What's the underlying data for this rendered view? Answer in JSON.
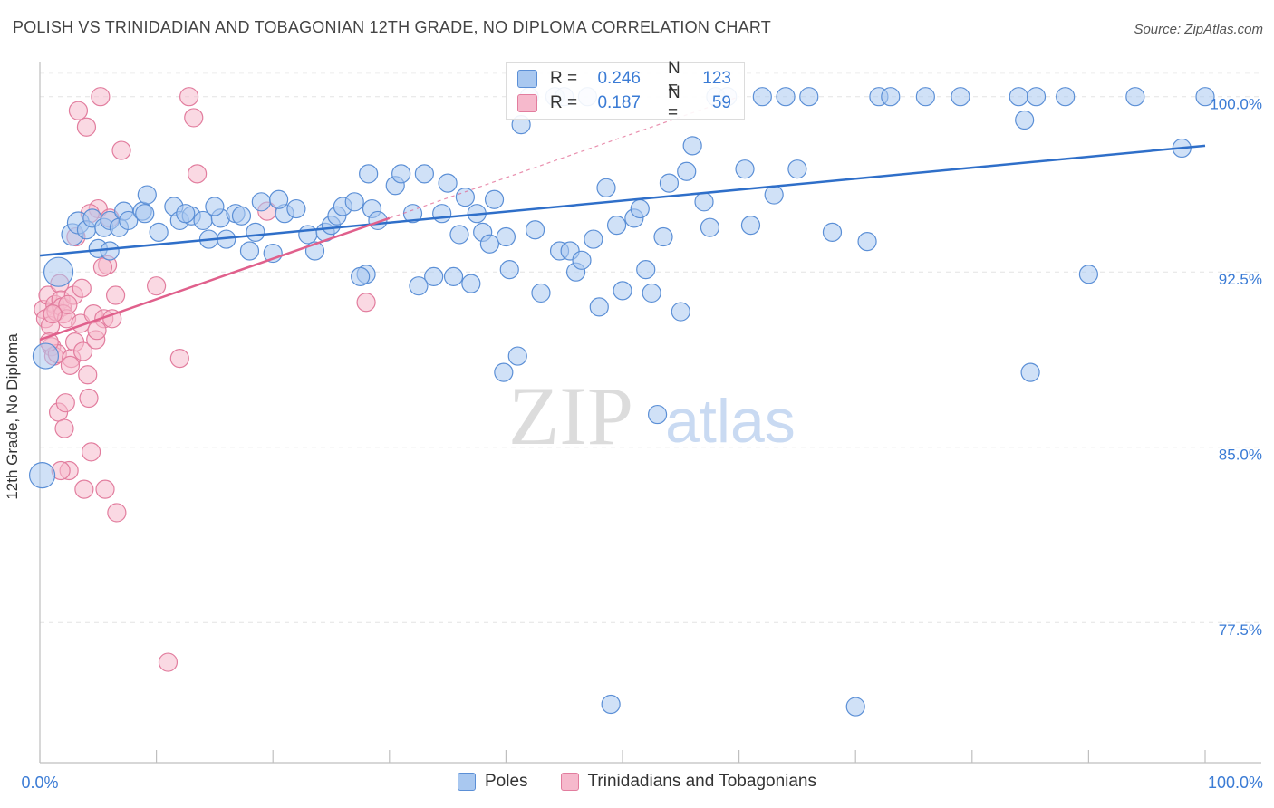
{
  "header": {
    "title": "POLISH VS TRINIDADIAN AND TOBAGONIAN 12TH GRADE, NO DIPLOMA CORRELATION CHART",
    "source": "Source: ZipAtlas.com"
  },
  "watermark": {
    "zip": "ZIP",
    "atlas": "atlas"
  },
  "colors": {
    "poles_fill": "#a9c8f0",
    "poles_stroke": "#5b8fd6",
    "poles_line": "#2f6fc9",
    "trin_fill": "#f6b9cc",
    "trin_stroke": "#e27d9e",
    "trin_line": "#e0608c",
    "axis_text": "#3a7bd5"
  },
  "legend_stats": [
    {
      "r_label": "R =",
      "r_value": "0.246",
      "n_label": "N =",
      "n_value": "123"
    },
    {
      "r_label": "R =",
      "r_value": "0.187",
      "n_label": "N =",
      "n_value": "59"
    }
  ],
  "legend_bottom": [
    "Poles",
    "Trinidadians and Tobagonians"
  ],
  "chart_data": {
    "type": "scatter",
    "title": "POLISH VS TRINIDADIAN AND TOBAGONIAN 12TH GRADE, NO DIPLOMA CORRELATION CHART",
    "xlabel": "",
    "ylabel": "12th Grade, No Diploma",
    "xlim": [
      0,
      100
    ],
    "ylim": [
      71.5,
      101.5
    ],
    "x_ticks": [
      "0.0%",
      "100.0%"
    ],
    "y_ticks": [
      {
        "value": 77.5,
        "label": "77.5%"
      },
      {
        "value": 85.0,
        "label": "85.0%"
      },
      {
        "value": 92.5,
        "label": "92.5%"
      },
      {
        "value": 100.0,
        "label": "100.0%"
      }
    ],
    "grid": true,
    "legend_position": "top-center",
    "series": [
      {
        "name": "Poles",
        "trend": {
          "x": [
            0,
            100
          ],
          "y": [
            93.2,
            97.9
          ]
        },
        "points": [
          [
            0.2,
            83.8,
            14
          ],
          [
            0.5,
            88.9,
            14
          ],
          [
            1.6,
            92.5,
            16
          ],
          [
            2.8,
            94.1,
            12
          ],
          [
            3.3,
            94.6,
            12
          ],
          [
            4.0,
            94.3,
            10
          ],
          [
            4.5,
            94.8,
            10
          ],
          [
            5.0,
            93.5,
            10
          ],
          [
            5.5,
            94.4,
            10
          ],
          [
            6.0,
            94.7,
            10
          ],
          [
            6.8,
            94.4,
            10
          ],
          [
            7.2,
            95.1,
            10
          ],
          [
            7.6,
            94.7,
            10
          ],
          [
            8.8,
            95.1,
            10
          ],
          [
            9.2,
            95.8,
            10
          ],
          [
            10.2,
            94.2,
            10
          ],
          [
            11.5,
            95.3,
            10
          ],
          [
            12.0,
            94.7,
            10
          ],
          [
            13.0,
            94.9,
            10
          ],
          [
            14.0,
            94.7,
            10
          ],
          [
            14.5,
            93.9,
            10
          ],
          [
            15.5,
            94.8,
            10
          ],
          [
            15.0,
            95.3,
            10
          ],
          [
            16.0,
            93.9,
            10
          ],
          [
            16.8,
            95.0,
            10
          ],
          [
            17.3,
            94.9,
            10
          ],
          [
            18.5,
            94.2,
            10
          ],
          [
            18.0,
            93.4,
            10
          ],
          [
            19.0,
            95.5,
            10
          ],
          [
            20.0,
            93.3,
            10
          ],
          [
            21.0,
            95.0,
            10
          ],
          [
            22.0,
            95.2,
            10
          ],
          [
            23.0,
            94.1,
            10
          ],
          [
            23.6,
            93.4,
            10
          ],
          [
            24.5,
            94.2,
            10
          ],
          [
            25.0,
            94.5,
            10
          ],
          [
            25.5,
            94.9,
            10
          ],
          [
            26.0,
            95.3,
            10
          ],
          [
            27.0,
            95.5,
            10
          ],
          [
            28.0,
            92.4,
            10
          ],
          [
            28.5,
            95.2,
            10
          ],
          [
            29.0,
            94.7,
            10
          ],
          [
            28.2,
            96.7,
            10
          ],
          [
            30.5,
            96.2,
            10
          ],
          [
            31.0,
            96.7,
            10
          ],
          [
            32.0,
            95.0,
            10
          ],
          [
            33.0,
            96.7,
            10
          ],
          [
            33.8,
            92.3,
            10
          ],
          [
            34.5,
            95.0,
            10
          ],
          [
            35.0,
            96.3,
            10
          ],
          [
            36.0,
            94.1,
            10
          ],
          [
            36.5,
            95.7,
            10
          ],
          [
            37.0,
            92.0,
            10
          ],
          [
            38.0,
            94.2,
            10
          ],
          [
            38.6,
            93.7,
            10
          ],
          [
            39.0,
            95.6,
            10
          ],
          [
            39.8,
            88.2,
            10
          ],
          [
            40.3,
            92.6,
            10
          ],
          [
            41.0,
            88.9,
            10
          ],
          [
            41.3,
            98.8,
            10
          ],
          [
            42.0,
            100.0,
            10
          ],
          [
            43.0,
            91.6,
            10
          ],
          [
            44.2,
            100.0,
            10
          ],
          [
            44.6,
            93.4,
            10
          ],
          [
            45.0,
            100.0,
            10
          ],
          [
            45.5,
            93.4,
            10
          ],
          [
            46.0,
            92.5,
            10
          ],
          [
            47.0,
            100.0,
            10
          ],
          [
            47.5,
            93.9,
            10
          ],
          [
            48.0,
            91.0,
            10
          ],
          [
            48.6,
            96.1,
            10
          ],
          [
            49.0,
            74.0,
            10
          ],
          [
            50.0,
            91.7,
            10
          ],
          [
            51.0,
            94.8,
            10
          ],
          [
            51.5,
            95.2,
            10
          ],
          [
            52.0,
            92.6,
            10
          ],
          [
            52.5,
            91.6,
            10
          ],
          [
            53.0,
            86.4,
            10
          ],
          [
            54.0,
            96.3,
            10
          ],
          [
            55.0,
            90.8,
            10
          ],
          [
            56.0,
            97.9,
            10
          ],
          [
            57.0,
            95.5,
            10
          ],
          [
            58.0,
            100.0,
            10
          ],
          [
            59.0,
            100.0,
            10
          ],
          [
            60.5,
            96.9,
            10
          ],
          [
            62.0,
            100.0,
            10
          ],
          [
            64.0,
            100.0,
            10
          ],
          [
            66.0,
            100.0,
            10
          ],
          [
            68.0,
            94.2,
            10
          ],
          [
            70.0,
            73.9,
            10
          ],
          [
            71.0,
            93.8,
            10
          ],
          [
            72.0,
            100.0,
            10
          ],
          [
            73.0,
            100.0,
            10
          ],
          [
            76.0,
            100.0,
            10
          ],
          [
            79.0,
            100.0,
            10
          ],
          [
            84.0,
            100.0,
            10
          ],
          [
            84.5,
            99.0,
            10
          ],
          [
            85.0,
            88.2,
            10
          ],
          [
            85.5,
            100.0,
            10
          ],
          [
            88.0,
            100.0,
            10
          ],
          [
            90.0,
            92.4,
            10
          ],
          [
            94.0,
            100.0,
            10
          ],
          [
            98.0,
            97.8,
            10
          ],
          [
            100.0,
            100.0,
            10
          ],
          [
            6.0,
            93.4,
            10
          ],
          [
            9.0,
            95.0,
            10
          ],
          [
            12.5,
            95.0,
            10
          ],
          [
            20.5,
            95.6,
            10
          ],
          [
            27.5,
            92.3,
            10
          ],
          [
            32.5,
            91.9,
            10
          ],
          [
            35.5,
            92.3,
            10
          ],
          [
            37.5,
            95.0,
            10
          ],
          [
            40.0,
            94.0,
            10
          ],
          [
            42.5,
            94.3,
            10
          ],
          [
            46.5,
            93.0,
            10
          ],
          [
            49.5,
            94.5,
            10
          ],
          [
            53.5,
            94.0,
            10
          ],
          [
            55.5,
            96.8,
            10
          ],
          [
            57.5,
            94.4,
            10
          ],
          [
            61.0,
            94.5,
            10
          ],
          [
            63.0,
            95.8,
            10
          ],
          [
            65.0,
            96.9,
            10
          ]
        ]
      },
      {
        "name": "Trinidadians and Tobagonians",
        "trend": {
          "x": [
            0,
            30
          ],
          "y": [
            89.6,
            94.8
          ]
        },
        "trend_ext": {
          "x": [
            30,
            60
          ],
          "y": [
            94.8,
            100.0
          ]
        },
        "points": [
          [
            0.3,
            90.9,
            10
          ],
          [
            0.5,
            90.5,
            10
          ],
          [
            0.7,
            91.5,
            10
          ],
          [
            0.9,
            90.2,
            10
          ],
          [
            1.0,
            89.3,
            10
          ],
          [
            1.2,
            88.9,
            10
          ],
          [
            1.3,
            91.1,
            10
          ],
          [
            1.4,
            90.8,
            10
          ],
          [
            1.5,
            89.0,
            10
          ],
          [
            1.6,
            86.5,
            10
          ],
          [
            1.7,
            92.0,
            10
          ],
          [
            1.8,
            91.3,
            10
          ],
          [
            1.9,
            91.0,
            10
          ],
          [
            2.0,
            90.7,
            10
          ],
          [
            2.1,
            85.8,
            10
          ],
          [
            2.2,
            86.9,
            10
          ],
          [
            2.3,
            90.5,
            10
          ],
          [
            2.5,
            84.0,
            10
          ],
          [
            2.7,
            88.8,
            10
          ],
          [
            2.9,
            91.5,
            10
          ],
          [
            3.0,
            89.5,
            10
          ],
          [
            3.3,
            99.4,
            10
          ],
          [
            3.5,
            90.3,
            10
          ],
          [
            3.7,
            89.1,
            10
          ],
          [
            3.8,
            83.2,
            10
          ],
          [
            4.0,
            98.7,
            10
          ],
          [
            4.1,
            88.1,
            10
          ],
          [
            4.2,
            87.1,
            10
          ],
          [
            4.4,
            84.8,
            10
          ],
          [
            4.6,
            90.7,
            10
          ],
          [
            4.8,
            89.6,
            10
          ],
          [
            5.0,
            95.2,
            10
          ],
          [
            5.2,
            100.0,
            10
          ],
          [
            5.5,
            90.5,
            10
          ],
          [
            5.6,
            83.2,
            10
          ],
          [
            5.8,
            92.8,
            10
          ],
          [
            6.0,
            94.8,
            10
          ],
          [
            6.2,
            90.5,
            10
          ],
          [
            6.5,
            91.5,
            10
          ],
          [
            6.6,
            82.2,
            10
          ],
          [
            7.0,
            97.7,
            10
          ],
          [
            10.0,
            91.9,
            10
          ],
          [
            11.0,
            75.8,
            10
          ],
          [
            12.0,
            88.8,
            10
          ],
          [
            12.8,
            100.0,
            10
          ],
          [
            13.2,
            99.1,
            10
          ],
          [
            13.5,
            96.7,
            10
          ],
          [
            19.5,
            95.1,
            10
          ],
          [
            28.0,
            91.2,
            10
          ],
          [
            2.4,
            91.1,
            10
          ],
          [
            1.1,
            90.7,
            10
          ],
          [
            0.8,
            89.5,
            10
          ],
          [
            3.1,
            94.0,
            10
          ],
          [
            4.3,
            95.0,
            10
          ],
          [
            5.4,
            92.7,
            10
          ],
          [
            2.6,
            88.5,
            10
          ],
          [
            3.6,
            91.8,
            10
          ],
          [
            1.8,
            84.0,
            10
          ],
          [
            4.9,
            90.0,
            10
          ]
        ]
      }
    ]
  }
}
